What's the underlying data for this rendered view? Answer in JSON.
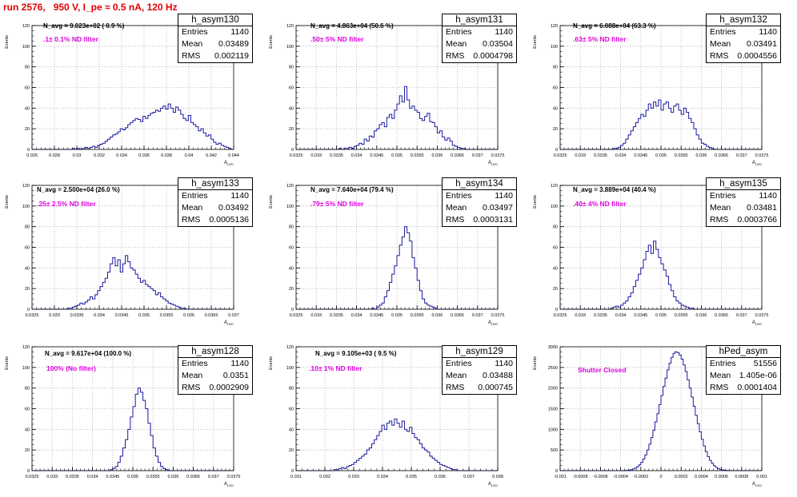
{
  "header": {
    "title": "run 2576,   950 V, I_pe ≈ 0.5 nA, 120 Hz"
  },
  "colors": {
    "histogram": "#1a1aa0",
    "filter_text": "#e000e0",
    "title": "#e00000",
    "grid": "#b0b0b0"
  },
  "stat_labels": {
    "entries": "Entries",
    "mean": "Mean",
    "rms": "RMS"
  },
  "chart_data": [
    {
      "type": "bar",
      "name": "h_asym130",
      "n_avg": "N_avg = 9.023e+02 ( 0.9 %)",
      "filter": ".1± 0.1% ND filter",
      "stats": {
        "entries": "1140",
        "mean": "0.03489",
        "rms": "0.002119"
      },
      "ylabel": "Events",
      "xlabel": "A_LED",
      "xlim": [
        0.026,
        0.044
      ],
      "ylim": [
        0,
        120
      ],
      "xticks": [
        "0.026",
        "0.028",
        "0.03",
        "0.032",
        "0.034",
        "0.036",
        "0.038",
        "0.04",
        "0.042",
        "0.044"
      ],
      "yticks": [
        "0",
        "20",
        "40",
        "60",
        "80",
        "100",
        "120"
      ],
      "bins": 80,
      "values": [
        0,
        0,
        0,
        0,
        0,
        0,
        0,
        0,
        0,
        0,
        0,
        0,
        0,
        0,
        0,
        0,
        1,
        0,
        1,
        0,
        1,
        2,
        1,
        2,
        3,
        2,
        4,
        5,
        6,
        8,
        10,
        12,
        14,
        15,
        17,
        20,
        19,
        21,
        24,
        26,
        28,
        30,
        29,
        27,
        32,
        30,
        33,
        35,
        36,
        38,
        37,
        40,
        42,
        39,
        44,
        40,
        36,
        41,
        38,
        34,
        30,
        28,
        33,
        26,
        24,
        22,
        18,
        20,
        16,
        13,
        14,
        10,
        7,
        5,
        6,
        4,
        3,
        2,
        1,
        0
      ]
    },
    {
      "type": "bar",
      "name": "h_asym131",
      "n_avg": "N_avg = 4.863e+04 (50.6 %)",
      "filter": ".50± 5% ND filter",
      "stats": {
        "entries": "1140",
        "mean": "0.03504",
        "rms": "0.0004798"
      },
      "ylabel": "Events",
      "xlabel": "A_LED",
      "xlim": [
        0.0325,
        0.0375
      ],
      "ylim": [
        0,
        120
      ],
      "xticks": [
        "0.0325",
        "0.033",
        "0.0335",
        "0.034",
        "0.0345",
        "0.035",
        "0.0355",
        "0.036",
        "0.0365",
        "0.037",
        "0.0375"
      ],
      "yticks": [
        "0",
        "20",
        "40",
        "60",
        "80",
        "100",
        "120"
      ],
      "bins": 80,
      "values": [
        0,
        0,
        0,
        0,
        0,
        0,
        0,
        0,
        0,
        0,
        0,
        0,
        0,
        0,
        0,
        0,
        0,
        1,
        0,
        1,
        1,
        2,
        1,
        3,
        4,
        6,
        5,
        10,
        8,
        13,
        12,
        18,
        20,
        24,
        26,
        22,
        31,
        34,
        30,
        38,
        44,
        52,
        46,
        61,
        48,
        40,
        42,
        38,
        36,
        30,
        28,
        32,
        35,
        27,
        26,
        22,
        16,
        18,
        12,
        9,
        11,
        8,
        4,
        3,
        2,
        1,
        1,
        0,
        0,
        0,
        0,
        0,
        0,
        0,
        0,
        0,
        0,
        0,
        0,
        0
      ]
    },
    {
      "type": "bar",
      "name": "h_asym132",
      "n_avg": "N_avg = 6.088e+04 (63.3 %)",
      "filter": ".63± 5% ND filter",
      "stats": {
        "entries": "1140",
        "mean": "0.03491",
        "rms": "0.0004556"
      },
      "ylabel": "Events",
      "xlabel": "A_LED",
      "xlim": [
        0.0325,
        0.0375
      ],
      "ylim": [
        0,
        120
      ],
      "xticks": [
        "0.0325",
        "0.033",
        "0.0335",
        "0.034",
        "0.0345",
        "0.035",
        "0.0355",
        "0.036",
        "0.0365",
        "0.037",
        "0.0375"
      ],
      "yticks": [
        "0",
        "20",
        "40",
        "60",
        "80",
        "100",
        "120"
      ],
      "bins": 80,
      "values": [
        0,
        0,
        0,
        0,
        0,
        0,
        0,
        0,
        0,
        0,
        0,
        0,
        0,
        0,
        0,
        0,
        0,
        0,
        0,
        0,
        0,
        1,
        1,
        2,
        4,
        6,
        10,
        14,
        18,
        22,
        26,
        30,
        34,
        32,
        38,
        44,
        40,
        46,
        42,
        48,
        38,
        44,
        46,
        40,
        36,
        42,
        44,
        38,
        34,
        40,
        36,
        30,
        26,
        20,
        14,
        10,
        6,
        5,
        3,
        2,
        1,
        0,
        0,
        0,
        0,
        0,
        0,
        0,
        0,
        0,
        0,
        0,
        0,
        0,
        0,
        0,
        0,
        0,
        0,
        0
      ]
    },
    {
      "type": "bar",
      "name": "h_asym133",
      "n_avg": "N_avg = 2.500e+04 (26.0 %)",
      "filter": ".25± 2.5% ND filter",
      "stats": {
        "entries": "1140",
        "mean": "0.03492",
        "rms": "0.0005136"
      },
      "ylabel": "Events",
      "xlabel": "A_LED",
      "xlim": [
        0.0325,
        0.037
      ],
      "ylim": [
        0,
        120
      ],
      "xticks": [
        "0.0325",
        "0.033",
        "0.0335",
        "0.034",
        "0.0345",
        "0.035",
        "0.0355",
        "0.036",
        "0.0365",
        "0.037"
      ],
      "yticks": [
        "0",
        "20",
        "40",
        "60",
        "80",
        "100",
        "120"
      ],
      "bins": 80,
      "values": [
        0,
        0,
        0,
        0,
        0,
        0,
        0,
        0,
        0,
        0,
        0,
        0,
        0,
        0,
        1,
        1,
        2,
        3,
        4,
        6,
        5,
        7,
        9,
        12,
        10,
        14,
        18,
        22,
        26,
        30,
        36,
        44,
        50,
        42,
        48,
        36,
        44,
        52,
        46,
        40,
        38,
        34,
        30,
        26,
        28,
        24,
        22,
        20,
        18,
        14,
        16,
        12,
        10,
        8,
        6,
        5,
        4,
        3,
        2,
        1,
        1,
        0,
        0,
        0,
        0,
        0,
        0,
        0,
        0,
        0,
        0,
        0,
        0,
        0,
        0,
        0,
        0,
        0,
        0,
        0
      ]
    },
    {
      "type": "bar",
      "name": "h_asym134",
      "n_avg": "N_avg = 7.640e+04 (79.4 %)",
      "filter": ".79± 5% ND filter",
      "stats": {
        "entries": "1140",
        "mean": "0.03497",
        "rms": "0.0003131"
      },
      "ylabel": "Events",
      "xlabel": "A_LED",
      "xlim": [
        0.0325,
        0.0375
      ],
      "ylim": [
        0,
        120
      ],
      "xticks": [
        "0.0325",
        "0.033",
        "0.0335",
        "0.034",
        "0.0345",
        "0.035",
        "0.0355",
        "0.036",
        "0.0365",
        "0.037",
        "0.0375"
      ],
      "yticks": [
        "0",
        "20",
        "40",
        "60",
        "80",
        "100",
        "120"
      ],
      "bins": 80,
      "values": [
        0,
        0,
        0,
        0,
        0,
        0,
        0,
        0,
        0,
        0,
        0,
        0,
        0,
        0,
        0,
        0,
        0,
        0,
        0,
        0,
        0,
        0,
        0,
        0,
        0,
        0,
        0,
        0,
        0,
        0,
        1,
        0,
        2,
        4,
        6,
        12,
        18,
        26,
        34,
        42,
        52,
        62,
        70,
        80,
        74,
        66,
        50,
        40,
        28,
        18,
        10,
        6,
        4,
        3,
        2,
        1,
        0,
        0,
        0,
        0,
        0,
        0,
        0,
        0,
        0,
        0,
        0,
        0,
        0,
        0,
        0,
        0,
        0,
        0,
        0,
        0,
        0,
        0,
        0,
        0
      ]
    },
    {
      "type": "bar",
      "name": "h_asym135",
      "n_avg": "N_avg = 3.889e+04 (40.4 %)",
      "filter": ".40± 4% ND filter",
      "stats": {
        "entries": "1140",
        "mean": "0.03481",
        "rms": "0.0003766"
      },
      "ylabel": "Events",
      "xlabel": "A_LED",
      "xlim": [
        0.0325,
        0.0375
      ],
      "ylim": [
        0,
        120
      ],
      "xticks": [
        "0.0325",
        "0.033",
        "0.0335",
        "0.034",
        "0.0345",
        "0.035",
        "0.0355",
        "0.036",
        "0.0365",
        "0.037",
        "0.0375"
      ],
      "yticks": [
        "0",
        "20",
        "40",
        "60",
        "80",
        "100",
        "120"
      ],
      "bins": 80,
      "values": [
        0,
        0,
        0,
        0,
        0,
        0,
        0,
        0,
        0,
        0,
        0,
        0,
        0,
        0,
        0,
        0,
        0,
        0,
        0,
        0,
        1,
        2,
        3,
        2,
        4,
        6,
        8,
        12,
        16,
        22,
        28,
        34,
        40,
        48,
        56,
        62,
        54,
        66,
        58,
        50,
        44,
        38,
        32,
        24,
        18,
        12,
        8,
        6,
        4,
        3,
        2,
        1,
        1,
        0,
        0,
        0,
        0,
        0,
        0,
        0,
        0,
        0,
        0,
        0,
        0,
        0,
        0,
        0,
        0,
        0,
        0,
        0,
        0,
        0,
        0,
        0,
        0,
        0,
        0,
        0
      ]
    },
    {
      "type": "bar",
      "name": "h_asym128",
      "n_avg": "N_avg = 9.617e+04 (100.0 %)",
      "filter": "100% (No filter)",
      "stats": {
        "entries": "1140",
        "mean": "0.0351",
        "rms": "0.0002909"
      },
      "ylabel": "Events",
      "xlabel": "A_LED",
      "xlim": [
        0.0325,
        0.0375
      ],
      "ylim": [
        0,
        120
      ],
      "xticks": [
        "0.0325",
        "0.033",
        "0.0335",
        "0.034",
        "0.0345",
        "0.035",
        "0.0355",
        "0.036",
        "0.0365",
        "0.037",
        "0.0375"
      ],
      "yticks": [
        "0",
        "20",
        "40",
        "60",
        "80",
        "100",
        "120"
      ],
      "bins": 80,
      "values": [
        0,
        0,
        0,
        0,
        0,
        0,
        0,
        0,
        0,
        0,
        0,
        0,
        0,
        0,
        0,
        0,
        0,
        0,
        0,
        0,
        0,
        0,
        0,
        0,
        0,
        0,
        0,
        0,
        0,
        0,
        0,
        1,
        2,
        4,
        8,
        14,
        22,
        30,
        40,
        52,
        62,
        74,
        80,
        76,
        68,
        60,
        46,
        34,
        22,
        14,
        8,
        4,
        2,
        1,
        0,
        0,
        0,
        0,
        0,
        0,
        0,
        0,
        0,
        0,
        0,
        0,
        0,
        0,
        0,
        0,
        0,
        0,
        0,
        0,
        0,
        0,
        0,
        0,
        0,
        0
      ]
    },
    {
      "type": "bar",
      "name": "h_asym129",
      "n_avg": "N_avg = 9.105e+03 ( 9.5 %)",
      "filter": ".10± 1% ND filter",
      "stats": {
        "entries": "1140",
        "mean": "0.03488",
        "rms": "0.000745"
      },
      "ylabel": "Events",
      "xlabel": "A_LED",
      "xlim": [
        0.031,
        0.038
      ],
      "ylim": [
        0,
        120
      ],
      "xticks": [
        "0.031",
        "0.032",
        "0.033",
        "0.034",
        "0.035",
        "0.036",
        "0.037",
        "0.038"
      ],
      "yticks": [
        "0",
        "20",
        "40",
        "60",
        "80",
        "100",
        "120"
      ],
      "bins": 80,
      "values": [
        0,
        0,
        0,
        0,
        0,
        0,
        0,
        0,
        0,
        0,
        0,
        0,
        0,
        0,
        0,
        1,
        1,
        2,
        3,
        2,
        4,
        5,
        6,
        8,
        10,
        12,
        14,
        16,
        20,
        22,
        26,
        30,
        34,
        38,
        44,
        40,
        46,
        48,
        44,
        50,
        46,
        42,
        48,
        40,
        38,
        42,
        36,
        32,
        30,
        26,
        22,
        20,
        18,
        14,
        12,
        10,
        8,
        6,
        5,
        4,
        3,
        2,
        1,
        1,
        0,
        0,
        0,
        0,
        0,
        0,
        0,
        0,
        0,
        0,
        0,
        0,
        0,
        0,
        0,
        0
      ]
    },
    {
      "type": "bar",
      "name": "hPed_asym",
      "n_avg": "",
      "filter": "Shutter Closed",
      "stats": {
        "entries": "51556",
        "mean": "1.405e-06",
        "rms": "0.0001404"
      },
      "ylabel": "Events",
      "xlabel": "A_LED",
      "xlim": [
        -0.001,
        0.001
      ],
      "ylim": [
        0,
        3000
      ],
      "xticks": [
        "-0.001",
        "-0.0008",
        "-0.0006",
        "-0.0004",
        "-0.0002",
        "0",
        "0.0002",
        "0.0004",
        "0.0006",
        "0.0008",
        "0.001"
      ],
      "yticks": [
        "0",
        "500",
        "1000",
        "1500",
        "2000",
        "2500",
        "3000"
      ],
      "bins": 100,
      "values": [
        0,
        0,
        0,
        0,
        0,
        0,
        0,
        0,
        0,
        0,
        0,
        0,
        0,
        0,
        0,
        0,
        0,
        0,
        0,
        0,
        0,
        0,
        0,
        0,
        0,
        0,
        0,
        0,
        0,
        0,
        1,
        2,
        4,
        8,
        14,
        24,
        40,
        62,
        96,
        140,
        200,
        280,
        380,
        500,
        640,
        800,
        980,
        1180,
        1380,
        1600,
        1820,
        2040,
        2240,
        2440,
        2600,
        2740,
        2840,
        2880,
        2860,
        2800,
        2700,
        2560,
        2400,
        2200,
        2000,
        1780,
        1560,
        1340,
        1140,
        940,
        760,
        600,
        460,
        340,
        250,
        180,
        120,
        80,
        50,
        30,
        18,
        10,
        6,
        3,
        2,
        1,
        0,
        0,
        0,
        0,
        0,
        0,
        0,
        0,
        0,
        0,
        0,
        0,
        0,
        0
      ]
    }
  ]
}
